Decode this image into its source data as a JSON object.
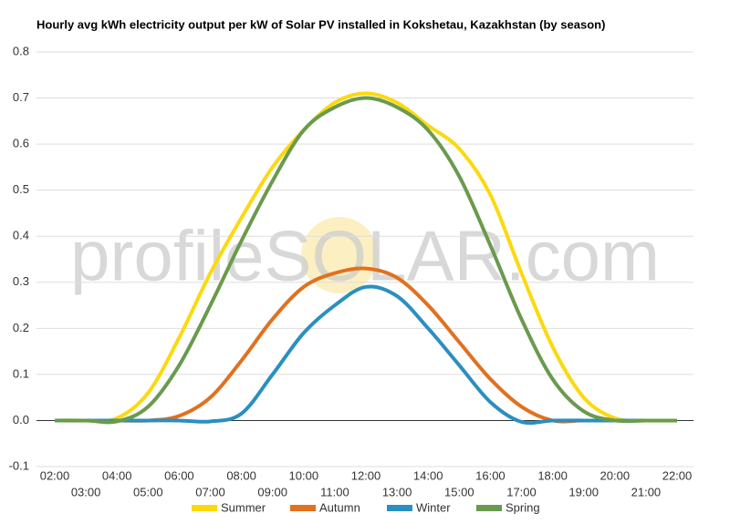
{
  "chart_data": {
    "type": "line",
    "title": "Hourly avg kWh electricity output per kW of Solar PV installed in Kokshetau, Kazakhstan (by season)",
    "watermark": "profileSOLAR.com",
    "categories": [
      "02:00",
      "03:00",
      "04:00",
      "05:00",
      "06:00",
      "07:00",
      "08:00",
      "09:00",
      "10:00",
      "11:00",
      "12:00",
      "13:00",
      "14:00",
      "15:00",
      "16:00",
      "17:00",
      "18:00",
      "19:00",
      "20:00",
      "21:00",
      "22:00"
    ],
    "series": [
      {
        "name": "Summer",
        "color": "#fcd90f",
        "values": [
          0,
          0,
          0.005,
          0.06,
          0.18,
          0.32,
          0.44,
          0.55,
          0.63,
          0.69,
          0.71,
          0.69,
          0.64,
          0.59,
          0.49,
          0.32,
          0.16,
          0.05,
          0.005,
          0,
          0
        ]
      },
      {
        "name": "Autumn",
        "color": "#e1711f",
        "values": [
          0,
          0,
          0,
          0,
          0.01,
          0.05,
          0.13,
          0.22,
          0.29,
          0.32,
          0.33,
          0.31,
          0.25,
          0.17,
          0.09,
          0.03,
          0,
          0,
          0,
          0,
          0
        ]
      },
      {
        "name": "Winter",
        "color": "#2b8fbf",
        "values": [
          0,
          0,
          0,
          0,
          0,
          -0.002,
          0.015,
          0.1,
          0.19,
          0.25,
          0.29,
          0.27,
          0.2,
          0.12,
          0.04,
          -0.003,
          0,
          0,
          0,
          0,
          0
        ]
      },
      {
        "name": "Spring",
        "color": "#6a9a4e",
        "values": [
          0,
          0,
          -0.002,
          0.03,
          0.12,
          0.25,
          0.39,
          0.52,
          0.63,
          0.68,
          0.7,
          0.68,
          0.63,
          0.53,
          0.38,
          0.22,
          0.09,
          0.02,
          0,
          0,
          0
        ]
      }
    ],
    "ylim": [
      -0.1,
      0.8
    ],
    "yticks": [
      -0.1,
      {
        "value": 0,
        "label": "0.0"
      },
      0.1,
      0.2,
      0.3,
      0.4,
      0.5,
      0.6,
      0.7,
      0.8
    ],
    "grid": true,
    "legend": "bottom"
  }
}
